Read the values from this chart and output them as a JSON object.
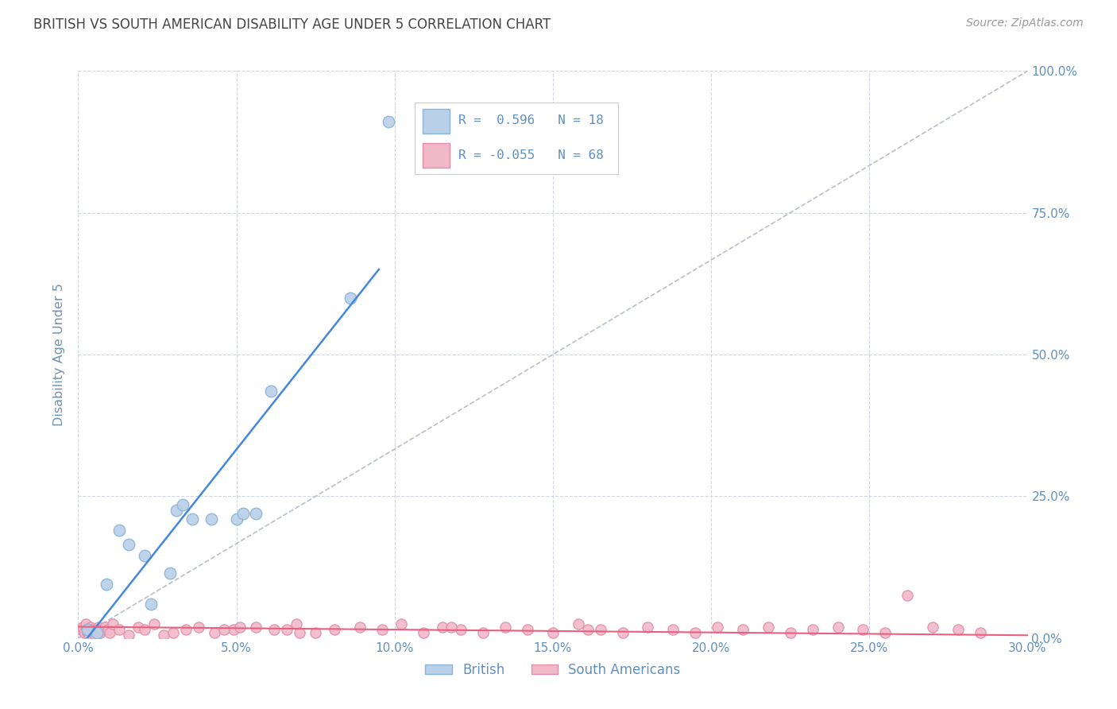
{
  "title": "BRITISH VS SOUTH AMERICAN DISABILITY AGE UNDER 5 CORRELATION CHART",
  "source": "Source: ZipAtlas.com",
  "ylabel": "Disability Age Under 5",
  "x_tick_labels": [
    "0.0%",
    "5.0%",
    "10.0%",
    "15.0%",
    "20.0%",
    "25.0%",
    "30.0%"
  ],
  "x_tick_vals": [
    0.0,
    5.0,
    10.0,
    15.0,
    20.0,
    25.0,
    30.0
  ],
  "y_tick_labels": [
    "0.0%",
    "25.0%",
    "50.0%",
    "75.0%",
    "100.0%"
  ],
  "y_tick_vals": [
    0.0,
    25.0,
    50.0,
    75.0,
    100.0
  ],
  "xlim": [
    0.0,
    30.0
  ],
  "ylim": [
    0.0,
    100.0
  ],
  "british_R": 0.596,
  "british_N": 18,
  "sa_R": -0.055,
  "sa_N": 68,
  "british_color": "#b8d0e8",
  "british_edge": "#8ab4d8",
  "sa_color": "#f0b8c8",
  "sa_edge": "#e090a8",
  "british_trend_color": "#4488dd",
  "sa_trend_color": "#e86080",
  "ref_line_color": "#b8bfcc",
  "legend_british_label": "British",
  "legend_sa_label": "South Americans",
  "background_color": "#ffffff",
  "grid_color": "#d0d5e0",
  "title_color": "#444444",
  "ylabel_color": "#7090b0",
  "tick_label_color": "#6090c0",
  "british_x": [
    0.3,
    0.6,
    0.9,
    1.3,
    1.6,
    2.1,
    2.3,
    2.9,
    3.1,
    3.6,
    3.3,
    4.2,
    5.6,
    6.1,
    5.0,
    5.2,
    8.6,
    9.8
  ],
  "british_y": [
    1.5,
    1.0,
    9.5,
    19.0,
    16.5,
    14.5,
    6.0,
    11.5,
    22.5,
    21.0,
    23.5,
    21.0,
    22.0,
    43.5,
    21.0,
    22.0,
    60.0,
    91.0
  ],
  "british_trend_x0": 0.0,
  "british_trend_y0": -2.0,
  "british_trend_x1": 9.5,
  "british_trend_y1": 65.0,
  "sa_trend_x0": 0.0,
  "sa_trend_y0": 2.0,
  "sa_trend_x1": 30.0,
  "sa_trend_y1": 0.5,
  "ref_x0": 0.0,
  "ref_y0": 0.0,
  "ref_x1": 30.0,
  "ref_y1": 100.0,
  "sa_x": [
    0.1,
    0.15,
    0.2,
    0.25,
    0.3,
    0.35,
    0.4,
    0.45,
    0.5,
    0.55,
    0.6,
    0.65,
    0.7,
    0.75,
    0.85,
    0.95,
    1.0,
    1.1,
    1.3,
    1.6,
    1.9,
    2.1,
    2.4,
    2.7,
    3.0,
    3.4,
    3.8,
    4.3,
    4.9,
    5.6,
    6.2,
    6.9,
    7.5,
    8.1,
    8.9,
    9.6,
    10.2,
    10.9,
    11.5,
    12.1,
    12.8,
    13.5,
    14.2,
    15.0,
    15.8,
    16.5,
    17.2,
    18.0,
    18.8,
    19.5,
    20.2,
    21.0,
    21.8,
    22.5,
    23.2,
    24.0,
    24.8,
    25.5,
    26.2,
    27.0,
    27.8,
    28.5,
    4.6,
    5.1,
    6.6,
    7.0,
    11.8,
    16.1
  ],
  "sa_y": [
    1.5,
    2.0,
    1.0,
    2.5,
    1.0,
    0.5,
    2.0,
    1.5,
    1.0,
    0.5,
    1.5,
    2.0,
    1.0,
    1.5,
    2.0,
    1.5,
    1.0,
    2.5,
    1.5,
    0.5,
    2.0,
    1.5,
    2.5,
    0.5,
    1.0,
    1.5,
    2.0,
    1.0,
    1.5,
    2.0,
    1.5,
    2.5,
    1.0,
    1.5,
    2.0,
    1.5,
    2.5,
    1.0,
    2.0,
    1.5,
    1.0,
    2.0,
    1.5,
    1.0,
    2.5,
    1.5,
    1.0,
    2.0,
    1.5,
    1.0,
    2.0,
    1.5,
    2.0,
    1.0,
    1.5,
    2.0,
    1.5,
    1.0,
    7.5,
    2.0,
    1.5,
    1.0,
    1.5,
    2.0,
    1.5,
    1.0,
    2.0,
    1.5
  ]
}
